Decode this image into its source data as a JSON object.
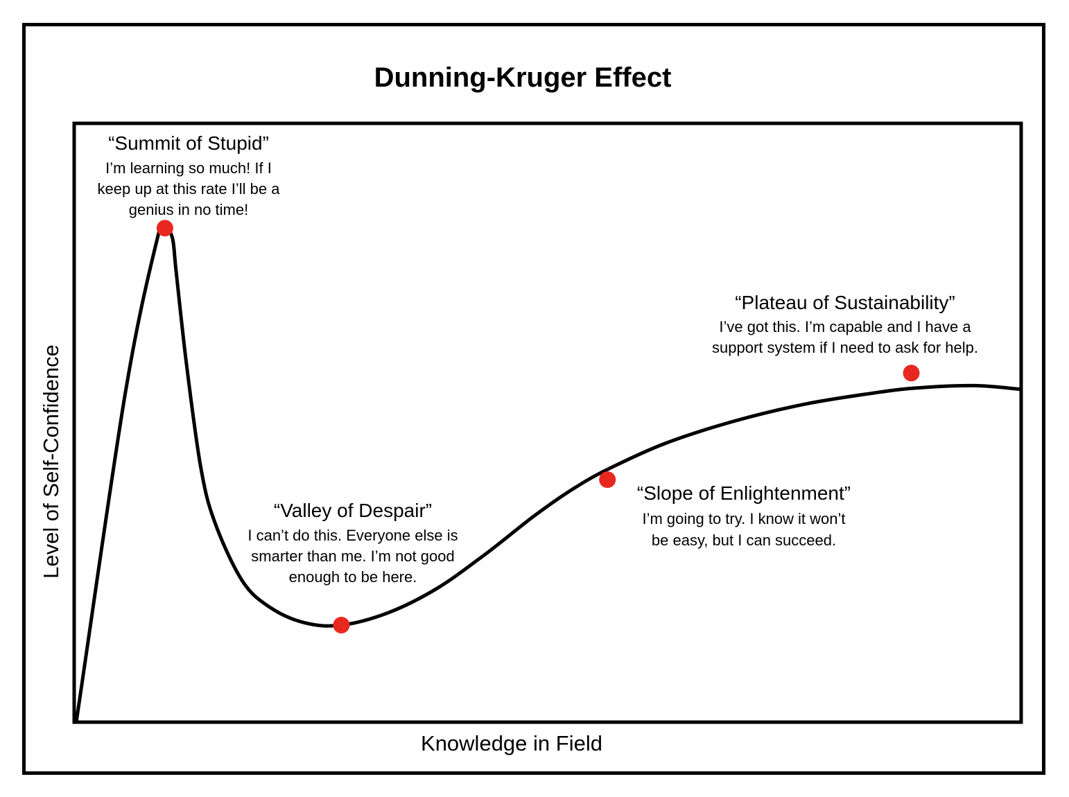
{
  "chart_data": {
    "type": "line",
    "title": "Dunning-Kruger Effect",
    "xlabel": "Knowledge in Field",
    "ylabel": "Level of Self-Confidence",
    "xlim": [
      0,
      100
    ],
    "ylim": [
      0,
      100
    ],
    "grid": false,
    "legend": "none",
    "series": [
      {
        "curve": [
          {
            "x": 0,
            "y": 0
          },
          {
            "x": 5.2,
            "y": 55
          },
          {
            "x": 8.6,
            "y": 80.8
          },
          {
            "x": 9.4,
            "y": 82.5
          },
          {
            "x": 10.2,
            "y": 80.8
          },
          {
            "x": 10.6,
            "y": 75
          },
          {
            "x": 11.7,
            "y": 59.6
          },
          {
            "x": 13.2,
            "y": 42.5
          },
          {
            "x": 14.7,
            "y": 33.3
          },
          {
            "x": 17.6,
            "y": 23.6
          },
          {
            "x": 20.5,
            "y": 19.2
          },
          {
            "x": 24.2,
            "y": 16.6
          },
          {
            "x": 28.1,
            "y": 16.2
          },
          {
            "x": 33.1,
            "y": 18.3
          },
          {
            "x": 38.2,
            "y": 22.3
          },
          {
            "x": 43.4,
            "y": 28.1
          },
          {
            "x": 48.5,
            "y": 34.4
          },
          {
            "x": 52.6,
            "y": 38.9
          },
          {
            "x": 56.3,
            "y": 42.2
          },
          {
            "x": 62.5,
            "y": 46.6
          },
          {
            "x": 69.8,
            "y": 50.3
          },
          {
            "x": 77.2,
            "y": 53.1
          },
          {
            "x": 84.2,
            "y": 54.9
          },
          {
            "x": 89.0,
            "y": 55.8
          },
          {
            "x": 95.2,
            "y": 56.2
          },
          {
            "x": 100,
            "y": 55.6
          }
        ]
      }
    ],
    "points": [
      {
        "x": 9.4,
        "y": 82.5,
        "color": "#e8281f"
      },
      {
        "x": 28.1,
        "y": 16.2,
        "color": "#e8281f"
      },
      {
        "x": 56.3,
        "y": 40.5,
        "color": "#e8281f"
      },
      {
        "x": 88.5,
        "y": 58.3,
        "color": "#e8281f"
      }
    ],
    "annotations": [
      {
        "title": "“Summit of Stupid”",
        "lines": [
          "I’m learning so much! If I",
          "keep up at this rate I’ll be a",
          "genius in no time!"
        ]
      },
      {
        "title": "“Valley of Despair”",
        "lines": [
          "I can’t do this. Everyone else is",
          "smarter than me. I’m not good",
          "enough to be here."
        ]
      },
      {
        "title": "“Slope of Enlightenment”",
        "lines": [
          "I’m going to try. I know it won’t",
          "be easy, but I can succeed."
        ]
      },
      {
        "title": "“Plateau of Sustainability”",
        "lines": [
          "I’ve got this. I’m capable and I have a",
          "support system if I need to ask for help."
        ]
      }
    ]
  },
  "colors": {
    "line": "#000000",
    "marker": "#e8281f",
    "background": "#ffffff"
  }
}
